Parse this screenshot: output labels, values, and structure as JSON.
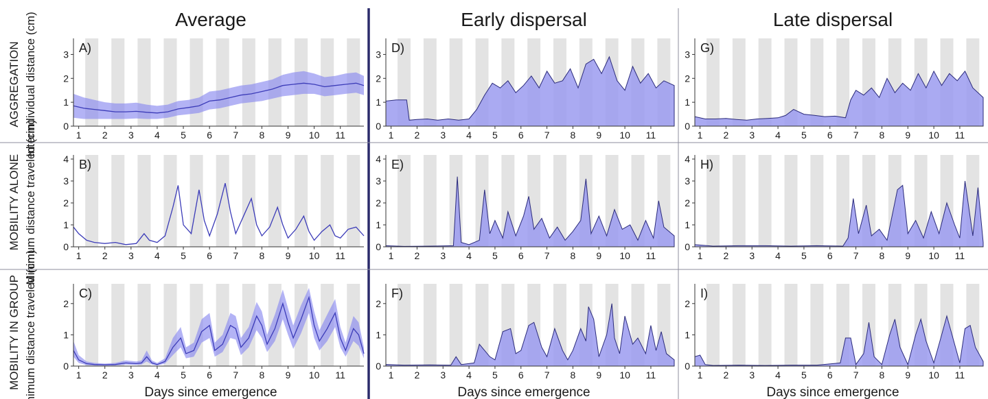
{
  "columns": [
    "Average",
    "Early dispersal",
    "Late dispersal"
  ],
  "rows": [
    {
      "group": "AGGREGATION",
      "ylabel": "Interindividual distance (cm)"
    },
    {
      "group": "MOBILITY ALONE",
      "ylabel": "Minimum distance traveled (cm)"
    },
    {
      "group": "MOBILITY IN GROUP",
      "ylabel": "Minimum distance traveled (cm)"
    }
  ],
  "x_axis_label": "Days since emergence",
  "x_ticks": [
    "1",
    "2",
    "3",
    "4",
    "5",
    "6",
    "7",
    "8",
    "9",
    "10",
    "11"
  ],
  "colors": {
    "fill": "#9b9bf0",
    "line": "#2a2a7a",
    "night": "#e3e3e3",
    "band": "#8a8af0",
    "thick_divider": "#2b2b6b",
    "thin_divider": "#8c8c9c"
  },
  "chart_data": [
    {
      "panel": "A)",
      "type": "line",
      "stat": "mean with spread band",
      "xlim": [
        0.8,
        11.9
      ],
      "ylim": [
        0,
        3.5
      ],
      "yticks": [
        0,
        1,
        2,
        3
      ],
      "x": [
        0.8,
        1.2,
        1.6,
        2.0,
        2.4,
        2.8,
        3.2,
        3.6,
        4.0,
        4.4,
        4.8,
        5.2,
        5.6,
        6.0,
        6.4,
        6.8,
        7.2,
        7.6,
        8.0,
        8.4,
        8.8,
        9.2,
        9.6,
        10.0,
        10.4,
        10.8,
        11.2,
        11.6,
        11.9
      ],
      "mean": [
        0.85,
        0.75,
        0.7,
        0.65,
        0.6,
        0.6,
        0.62,
        0.58,
        0.55,
        0.6,
        0.72,
        0.78,
        0.85,
        1.05,
        1.1,
        1.2,
        1.3,
        1.35,
        1.45,
        1.55,
        1.7,
        1.75,
        1.8,
        1.75,
        1.65,
        1.7,
        1.75,
        1.8,
        1.7
      ],
      "band_lo": [
        0.35,
        0.3,
        0.3,
        0.3,
        0.3,
        0.3,
        0.32,
        0.3,
        0.3,
        0.35,
        0.45,
        0.5,
        0.55,
        0.7,
        0.75,
        0.85,
        0.95,
        1.0,
        1.05,
        1.15,
        1.25,
        1.3,
        1.35,
        1.35,
        1.25,
        1.3,
        1.35,
        1.4,
        1.3
      ],
      "band_hi": [
        1.35,
        1.2,
        1.1,
        1.0,
        0.95,
        0.95,
        0.98,
        0.9,
        0.85,
        0.9,
        1.05,
        1.1,
        1.2,
        1.45,
        1.5,
        1.6,
        1.7,
        1.75,
        1.85,
        1.95,
        2.15,
        2.25,
        2.3,
        2.2,
        2.05,
        2.1,
        2.2,
        2.25,
        2.1
      ]
    },
    {
      "panel": "D)",
      "type": "area",
      "xlim": [
        0.8,
        11.9
      ],
      "ylim": [
        0,
        3.5
      ],
      "yticks": [
        0,
        1,
        2,
        3
      ],
      "x": [
        0.8,
        1.2,
        1.6,
        1.7,
        2.0,
        2.4,
        2.8,
        3.2,
        3.6,
        4.0,
        4.3,
        4.6,
        4.9,
        5.2,
        5.5,
        5.8,
        6.1,
        6.4,
        6.7,
        7.0,
        7.3,
        7.6,
        7.9,
        8.2,
        8.5,
        8.8,
        9.1,
        9.4,
        9.7,
        10.0,
        10.3,
        10.6,
        10.9,
        11.2,
        11.5,
        11.9
      ],
      "y": [
        1.05,
        1.1,
        1.1,
        0.25,
        0.28,
        0.3,
        0.25,
        0.3,
        0.25,
        0.3,
        0.7,
        1.3,
        1.8,
        1.6,
        1.9,
        1.4,
        1.7,
        2.1,
        1.6,
        2.3,
        1.8,
        1.9,
        2.4,
        1.6,
        2.6,
        2.8,
        2.2,
        2.9,
        1.9,
        1.5,
        2.5,
        1.8,
        2.2,
        1.6,
        1.9,
        1.7
      ]
    },
    {
      "panel": "G)",
      "type": "area",
      "xlim": [
        0.8,
        11.9
      ],
      "ylim": [
        0,
        3.5
      ],
      "yticks": [
        0,
        1,
        2,
        3
      ],
      "x": [
        0.8,
        1.2,
        1.6,
        2.0,
        2.4,
        2.8,
        3.2,
        3.6,
        4.0,
        4.3,
        4.6,
        5.0,
        5.4,
        5.8,
        6.2,
        6.6,
        6.8,
        7.0,
        7.3,
        7.6,
        7.9,
        8.2,
        8.5,
        8.8,
        9.1,
        9.4,
        9.7,
        10.0,
        10.3,
        10.6,
        10.9,
        11.2,
        11.5,
        11.9
      ],
      "y": [
        0.4,
        0.3,
        0.3,
        0.32,
        0.28,
        0.25,
        0.3,
        0.32,
        0.35,
        0.45,
        0.7,
        0.5,
        0.45,
        0.4,
        0.42,
        0.35,
        1.1,
        1.5,
        1.3,
        1.6,
        1.2,
        2.0,
        1.4,
        1.8,
        1.5,
        2.2,
        1.6,
        2.3,
        1.7,
        2.2,
        1.9,
        2.3,
        1.6,
        1.2
      ]
    },
    {
      "panel": "B)",
      "type": "line",
      "stat": "mean",
      "xlim": [
        0.8,
        11.9
      ],
      "ylim": [
        0,
        4
      ],
      "yticks": [
        0,
        1,
        2,
        3,
        4
      ],
      "x": [
        0.8,
        1.0,
        1.3,
        1.6,
        2.0,
        2.4,
        2.8,
        3.2,
        3.5,
        3.7,
        4.0,
        4.3,
        4.6,
        4.8,
        5.0,
        5.3,
        5.6,
        5.8,
        6.0,
        6.3,
        6.6,
        6.8,
        7.0,
        7.3,
        7.6,
        7.8,
        8.0,
        8.3,
        8.6,
        8.8,
        9.0,
        9.3,
        9.6,
        9.8,
        10.0,
        10.3,
        10.6,
        10.8,
        11.0,
        11.3,
        11.6,
        11.9
      ],
      "y": [
        0.9,
        0.6,
        0.3,
        0.2,
        0.15,
        0.2,
        0.1,
        0.15,
        0.6,
        0.3,
        0.2,
        0.5,
        1.8,
        2.8,
        1.0,
        0.6,
        2.6,
        1.2,
        0.5,
        1.5,
        2.9,
        1.6,
        0.6,
        1.4,
        2.2,
        1.0,
        0.5,
        0.9,
        1.8,
        1.0,
        0.4,
        0.8,
        1.4,
        0.7,
        0.3,
        0.7,
        1.0,
        0.5,
        0.4,
        0.8,
        0.9,
        0.5
      ]
    },
    {
      "panel": "E)",
      "type": "area",
      "xlim": [
        0.8,
        11.9
      ],
      "ylim": [
        0,
        4
      ],
      "yticks": [
        0,
        1,
        2,
        3,
        4
      ],
      "x": [
        0.8,
        1.5,
        2.5,
        3.4,
        3.55,
        3.7,
        4.0,
        4.4,
        4.6,
        4.8,
        5.0,
        5.3,
        5.5,
        5.8,
        6.1,
        6.3,
        6.5,
        6.8,
        7.1,
        7.4,
        7.7,
        8.0,
        8.3,
        8.5,
        8.7,
        9.0,
        9.3,
        9.6,
        9.9,
        10.2,
        10.5,
        10.8,
        11.1,
        11.3,
        11.5,
        11.9
      ],
      "y": [
        0.05,
        0.02,
        0.03,
        0.05,
        3.2,
        0.2,
        0.1,
        0.3,
        2.6,
        0.6,
        1.2,
        0.4,
        1.6,
        0.5,
        1.4,
        2.3,
        0.8,
        1.3,
        0.4,
        0.9,
        0.3,
        0.7,
        1.2,
        3.1,
        0.6,
        1.4,
        0.5,
        1.7,
        0.8,
        1.0,
        0.3,
        1.2,
        0.4,
        2.1,
        0.9,
        0.5
      ]
    },
    {
      "panel": "H)",
      "type": "area",
      "xlim": [
        0.8,
        11.9
      ],
      "ylim": [
        0,
        4
      ],
      "yticks": [
        0,
        1,
        2,
        3,
        4
      ],
      "x": [
        0.8,
        1.5,
        2.5,
        3.5,
        4.5,
        5.5,
        6.5,
        6.7,
        6.9,
        7.1,
        7.4,
        7.6,
        7.9,
        8.2,
        8.6,
        8.8,
        9.0,
        9.3,
        9.6,
        9.9,
        10.2,
        10.5,
        10.8,
        11.0,
        11.2,
        11.5,
        11.7,
        11.9
      ],
      "y": [
        0.1,
        0.03,
        0.05,
        0.05,
        0.03,
        0.05,
        0.03,
        0.4,
        2.2,
        0.6,
        1.9,
        0.5,
        0.8,
        0.3,
        2.6,
        2.8,
        0.6,
        1.2,
        0.4,
        1.6,
        0.6,
        2.0,
        1.0,
        0.4,
        3.0,
        0.5,
        2.7,
        0.2
      ]
    },
    {
      "panel": "C)",
      "type": "line",
      "stat": "mean with spread band",
      "xlim": [
        0.8,
        11.9
      ],
      "ylim": [
        0,
        2.5
      ],
      "yticks": [
        0,
        1,
        2
      ],
      "x": [
        0.8,
        1.0,
        1.3,
        1.6,
        2.0,
        2.4,
        2.8,
        3.2,
        3.4,
        3.6,
        3.8,
        4.0,
        4.3,
        4.6,
        4.9,
        5.1,
        5.4,
        5.7,
        6.0,
        6.2,
        6.5,
        6.8,
        7.0,
        7.2,
        7.5,
        7.8,
        8.0,
        8.2,
        8.5,
        8.8,
        9.0,
        9.2,
        9.5,
        9.8,
        10.0,
        10.2,
        10.5,
        10.8,
        11.0,
        11.2,
        11.5,
        11.7,
        11.9
      ],
      "mean": [
        0.5,
        0.2,
        0.08,
        0.05,
        0.04,
        0.05,
        0.1,
        0.08,
        0.1,
        0.3,
        0.1,
        0.05,
        0.15,
        0.6,
        0.9,
        0.4,
        0.5,
        1.1,
        1.3,
        0.5,
        0.7,
        1.3,
        1.2,
        0.6,
        0.9,
        1.6,
        1.3,
        0.7,
        1.2,
        2.0,
        1.4,
        0.9,
        1.5,
        2.2,
        1.3,
        0.8,
        1.2,
        1.7,
        0.9,
        0.5,
        1.2,
        1.0,
        0.4
      ],
      "band_lo": [
        0.3,
        0.1,
        0.03,
        0.02,
        0.02,
        0.02,
        0.05,
        0.04,
        0.05,
        0.15,
        0.05,
        0.02,
        0.08,
        0.35,
        0.6,
        0.25,
        0.3,
        0.75,
        0.9,
        0.3,
        0.45,
        0.9,
        0.85,
        0.35,
        0.6,
        1.15,
        0.9,
        0.45,
        0.8,
        1.5,
        1.0,
        0.55,
        1.05,
        1.7,
        0.9,
        0.5,
        0.8,
        1.25,
        0.6,
        0.3,
        0.8,
        0.65,
        0.25
      ],
      "band_hi": [
        0.8,
        0.35,
        0.15,
        0.1,
        0.08,
        0.1,
        0.18,
        0.15,
        0.18,
        0.5,
        0.18,
        0.1,
        0.25,
        0.9,
        1.25,
        0.6,
        0.75,
        1.5,
        1.7,
        0.75,
        1.0,
        1.7,
        1.6,
        0.9,
        1.25,
        2.05,
        1.75,
        1.0,
        1.65,
        2.45,
        1.85,
        1.3,
        1.95,
        2.5,
        1.75,
        1.15,
        1.65,
        2.15,
        1.25,
        0.75,
        1.6,
        1.4,
        0.6
      ]
    },
    {
      "panel": "F)",
      "type": "area",
      "xlim": [
        0.8,
        11.9
      ],
      "ylim": [
        0,
        2.5
      ],
      "yticks": [
        0,
        1,
        2
      ],
      "x": [
        0.8,
        1.5,
        2.5,
        3.3,
        3.5,
        3.7,
        4.2,
        4.4,
        4.6,
        4.8,
        5.0,
        5.3,
        5.6,
        5.8,
        6.0,
        6.3,
        6.5,
        6.8,
        7.0,
        7.3,
        7.6,
        7.8,
        8.0,
        8.3,
        8.5,
        8.6,
        8.8,
        9.0,
        9.3,
        9.5,
        9.6,
        9.8,
        10.0,
        10.3,
        10.5,
        10.8,
        11.0,
        11.2,
        11.4,
        11.6,
        11.9
      ],
      "y": [
        0.05,
        0.03,
        0.04,
        0.03,
        0.3,
        0.05,
        0.1,
        0.7,
        0.5,
        0.3,
        0.2,
        1.1,
        1.2,
        0.4,
        0.5,
        1.3,
        1.4,
        0.6,
        0.3,
        1.2,
        0.5,
        0.2,
        0.5,
        1.2,
        0.8,
        1.9,
        1.5,
        0.3,
        1.0,
        2.0,
        0.9,
        0.4,
        1.6,
        0.7,
        0.9,
        0.4,
        1.3,
        0.5,
        1.1,
        0.4,
        0.2
      ]
    },
    {
      "panel": "I)",
      "type": "area",
      "xlim": [
        0.8,
        11.9
      ],
      "ylim": [
        0,
        2.5
      ],
      "yticks": [
        0,
        1,
        2
      ],
      "x": [
        0.8,
        1.0,
        1.2,
        1.5,
        2.5,
        3.5,
        4.5,
        5.5,
        6.4,
        6.6,
        6.8,
        7.0,
        7.3,
        7.5,
        7.7,
        8.0,
        8.3,
        8.5,
        8.7,
        9.0,
        9.3,
        9.5,
        9.7,
        10.0,
        10.3,
        10.5,
        10.7,
        11.0,
        11.2,
        11.4,
        11.6,
        11.9
      ],
      "y": [
        0.3,
        0.35,
        0.05,
        0.02,
        0.03,
        0.02,
        0.03,
        0.03,
        0.1,
        0.9,
        0.9,
        0.05,
        0.4,
        1.4,
        0.3,
        0.05,
        1.0,
        1.5,
        0.6,
        0.05,
        1.0,
        1.5,
        0.8,
        0.1,
        1.0,
        1.6,
        1.0,
        0.1,
        1.2,
        1.3,
        0.6,
        0.15
      ]
    }
  ]
}
